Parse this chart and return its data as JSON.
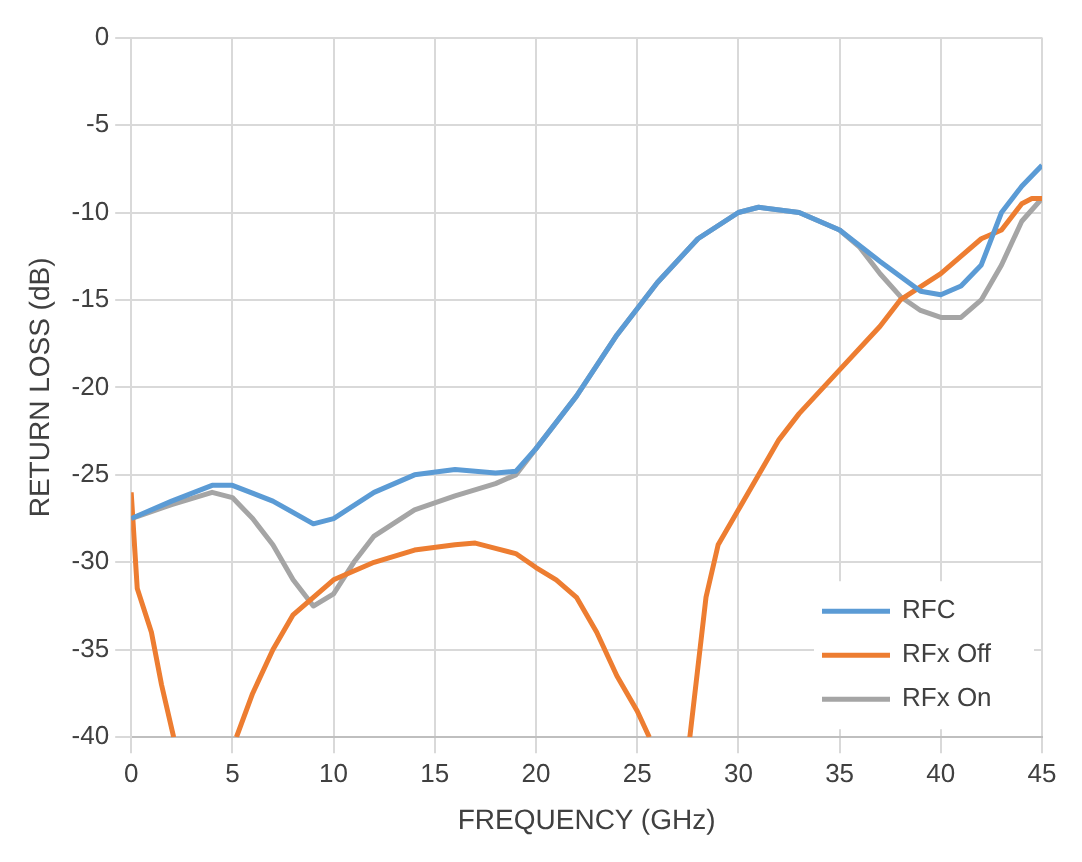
{
  "chart_data": {
    "type": "line",
    "xlabel": "FREQUENCY (GHz)",
    "ylabel": "RETURN LOSS (dB)",
    "xlim": [
      0,
      45
    ],
    "xticks": [
      0,
      5,
      10,
      15,
      20,
      25,
      30,
      35,
      40,
      45
    ],
    "ylim": [
      -40,
      0
    ],
    "yticks": [
      -40,
      -35,
      -30,
      -25,
      -20,
      -15,
      -10,
      -5,
      0
    ],
    "grid": true,
    "legend": "bottom right",
    "marker": "none",
    "line_style": "solid",
    "series": [
      {
        "name": "RFC",
        "color": "#5b9bd5",
        "x": [
          0,
          2,
          4,
          5,
          7,
          9,
          10,
          12,
          14,
          16,
          18,
          19,
          20,
          22,
          24,
          26,
          28,
          30,
          31,
          33,
          35,
          37,
          39,
          40,
          41,
          42,
          43,
          44,
          45
        ],
        "values": [
          -27.5,
          -26.5,
          -25.6,
          -25.6,
          -26.5,
          -27.8,
          -27.5,
          -26,
          -25,
          -24.7,
          -24.9,
          -24.8,
          -23.5,
          -20.5,
          -17,
          -14,
          -11.5,
          -10,
          -9.7,
          -10,
          -11,
          -12.8,
          -14.5,
          -14.7,
          -14.2,
          -13,
          -10,
          -8.5,
          -7.3
        ]
      },
      {
        "name": "RFx Off",
        "color": "#ed7d31",
        "x": [
          0,
          0.3,
          1,
          1.5,
          2.1,
          3.6,
          5.2,
          6,
          7,
          8,
          9,
          10,
          12,
          14,
          16,
          17,
          18,
          19,
          20,
          21,
          22,
          23,
          24,
          25,
          25.6,
          26.6,
          27.6,
          28,
          28.4,
          29,
          30,
          31,
          32,
          33,
          35,
          37,
          38,
          40,
          42,
          43,
          44,
          44.5,
          45
        ],
        "values": [
          -26,
          -31.5,
          -34,
          -37,
          -40,
          null,
          -40,
          -37.5,
          -35,
          -33,
          -32,
          -31,
          -30,
          -29.3,
          -29,
          -28.9,
          -29.2,
          -29.5,
          -30.3,
          -31,
          -32,
          -34,
          -36.5,
          -38.5,
          -40,
          null,
          -40,
          -36,
          -32,
          -29,
          -27,
          -25,
          -23,
          -21.5,
          -19,
          -16.5,
          -15,
          -13.5,
          -11.5,
          -11,
          -9.5,
          -9.2,
          -9.2
        ]
      },
      {
        "name": "RFx On",
        "color": "#a5a5a5",
        "x": [
          0,
          2,
          4,
          5,
          6,
          7,
          8,
          9,
          10,
          11,
          12,
          14,
          16,
          18,
          19,
          20,
          22,
          24,
          26,
          28,
          30,
          31,
          33,
          35,
          36,
          37,
          38,
          39,
          40,
          41,
          42,
          43,
          44,
          45
        ],
        "values": [
          -27.5,
          -26.7,
          -26,
          -26.3,
          -27.5,
          -29,
          -31,
          -32.5,
          -31.8,
          -30,
          -28.5,
          -27,
          -26.2,
          -25.5,
          -25,
          -23.5,
          -20.5,
          -17,
          -14,
          -11.5,
          -10,
          -9.7,
          -10,
          -11,
          -12,
          -13.5,
          -14.8,
          -15.6,
          -16,
          -16,
          -15,
          -13,
          -10.5,
          -9.2
        ]
      }
    ]
  }
}
